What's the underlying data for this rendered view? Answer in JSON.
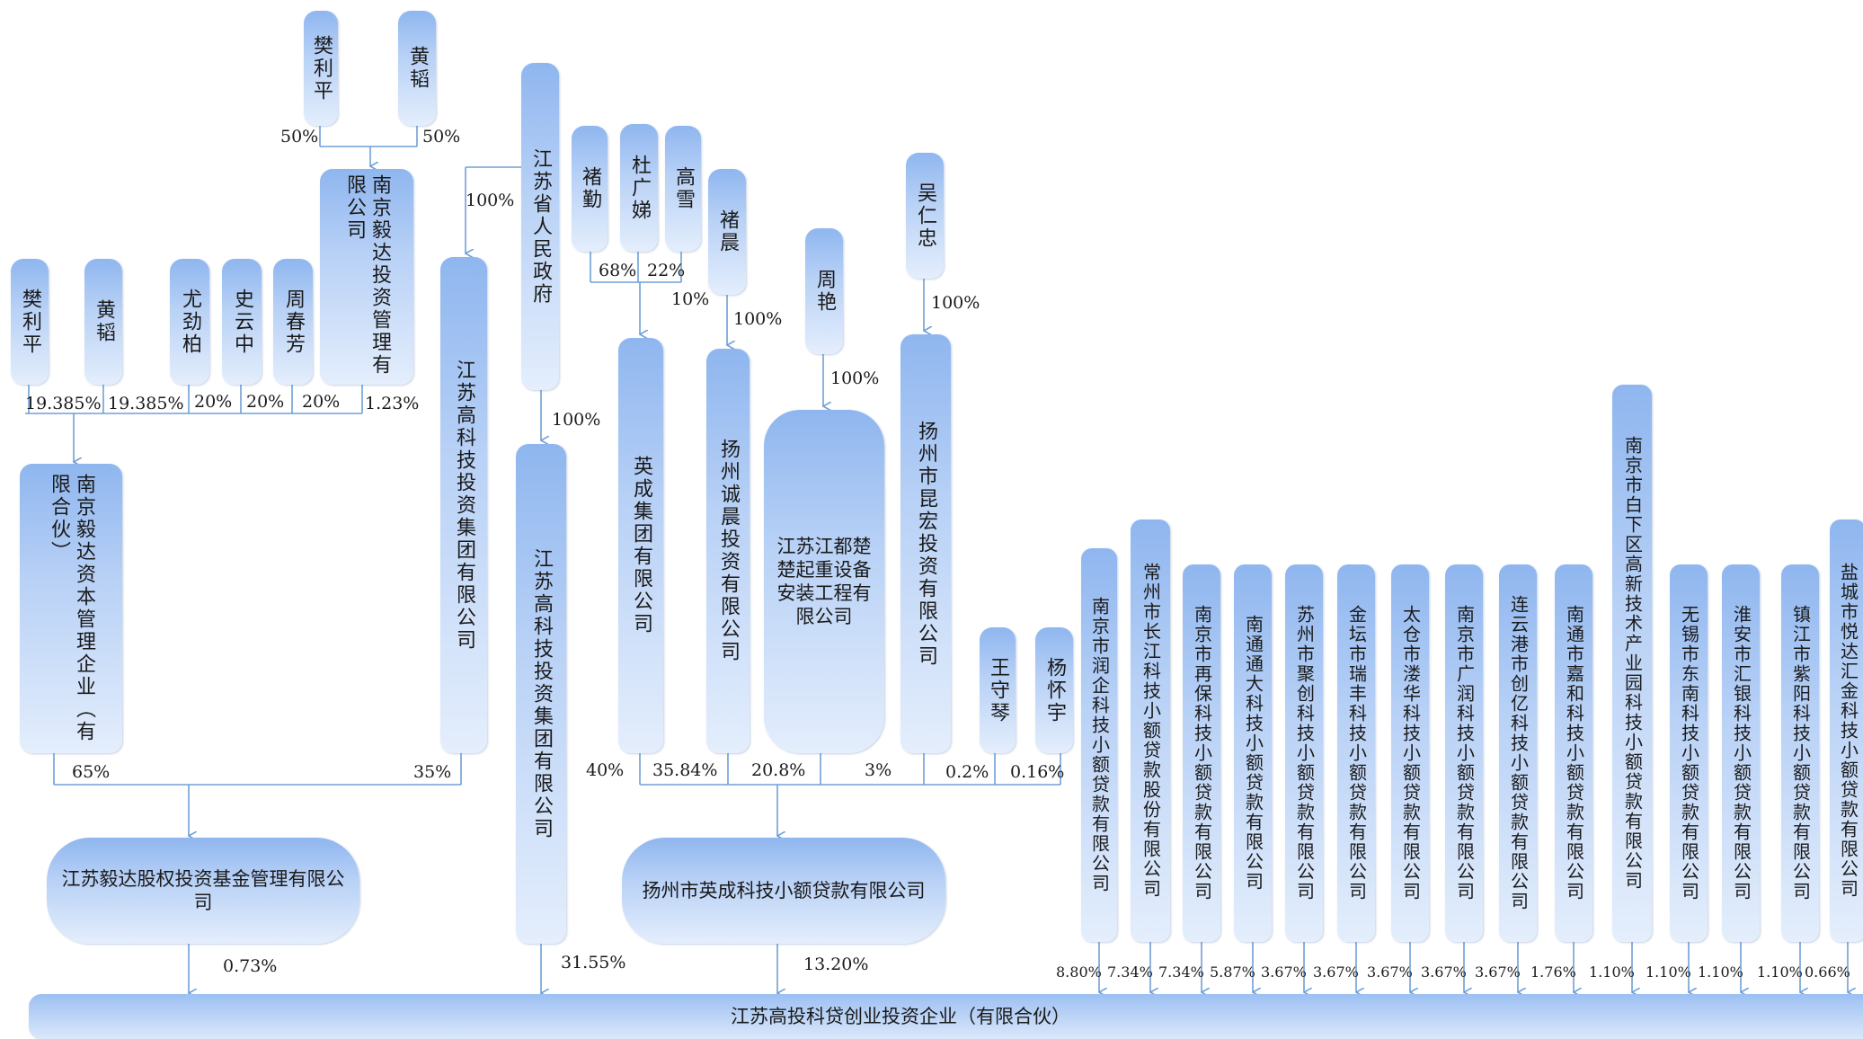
{
  "nodes": {
    "fan_liping_top": "樊利平",
    "huang_tao_top": "黄韬",
    "yida_invest_mgmt": "南京毅达投资管理有限公司",
    "jiangsu_gov": "江苏省人民政府",
    "chu_qin": "褚勤",
    "du_guangti": "杜广娣",
    "gao_xue": "高雪",
    "chu_chen": "褚晨",
    "wu_renzhong": "吴仁忠",
    "zhou_yan": "周艳",
    "fan_liping": "樊利平",
    "huang_tao": "黄韬",
    "you_jinbai": "尤劲柏",
    "shi_yunzhong": "史云中",
    "zhou_chunfang": "周春芳",
    "yida_capital_mgmt": "南京毅达资本管理企业（有限合伙）",
    "jiangsu_hitech_group_1": "江苏高科技投资集团有限公司",
    "jiangsu_hitech_group_2": "江苏高科技投资集团有限公司",
    "yingcheng_group": "英成集团有限公司",
    "yangzhou_chengchen": "扬州诚晨投资有限公司",
    "chuqi_equipment": "江苏江都楚楚起重设备安装工程有限公司",
    "yangzhou_kunhong": "扬州市昆宏投资有限公司",
    "wang_shouqin": "王守琴",
    "yang_huaiyu": "杨怀宇",
    "yida_equity_fund": "江苏毅达股权投资基金管理有限公司",
    "yangzhou_yingcheng_loan": "扬州市英成科技小额贷款有限公司",
    "lender_01": "南京市润企科技小额贷款有限公司",
    "lender_02": "常州市长江科技小额贷款股份有限公司",
    "lender_03": "南京市再保科技小额贷款有限公司",
    "lender_04": "南通通大科技小额贷款有限公司",
    "lender_05": "苏州市聚创科技小额贷款有限公司",
    "lender_06": "金坛市瑞丰科技小额贷款有限公司",
    "lender_07": "太仓市溇华科技小额贷款有限公司",
    "lender_08": "南京市广润科技小额贷款有限公司",
    "lender_09": "连云港市创亿科技小额贷款有限公司",
    "lender_10": "南通市嘉和科技小额贷款有限公司",
    "lender_11": "南京市白下区高新技术产业园科技小额贷款有限公司",
    "lender_12": "无锡市东南科技小额贷款有限公司",
    "lender_13": "淮安市汇银科技小额贷款有限公司",
    "lender_14": "镇江市紫阳科技小额贷款有限公司",
    "lender_15": "盐城市悦达汇金科技小额贷款有限公司",
    "target": "江苏高投科贷创业投资企业（有限合伙）"
  },
  "percentages": {
    "fan_top_to_yida_invest": "50%",
    "huang_top_to_yida_invest": "50%",
    "gov_to_hitech_1": "100%",
    "gov_to_hitech_2": "100%",
    "duguangti_to_yingcheng": "68%",
    "gaoxue_to_yingcheng": "22%",
    "chuqin_to_yingcheng": "10%",
    "chuchen_to_chengchen": "100%",
    "zhouyan_to_chuqi": "100%",
    "wurenzhong_to_kunhong": "100%",
    "fan_to_capital": "19.385%",
    "huang_to_capital": "19.385%",
    "you_to_capital": "20%",
    "shi_to_capital": "20%",
    "zhou_to_capital": "20%",
    "yidainvest_to_capital": "1.23%",
    "capital_to_equity_fund": "65%",
    "hitech1_to_equity_fund": "35%",
    "yingcheng_to_loan": "40%",
    "chengchen_to_loan": "35.84%",
    "chuqi_to_loan": "20.8%",
    "kunhong_to_loan": "3%",
    "wang_to_loan": "0.2%",
    "yang_to_loan": "0.16%",
    "equity_fund_to_target": "0.73%",
    "hitech2_to_target": "31.55%",
    "yzloan_to_target": "13.20%",
    "lender_01": "8.80%",
    "lender_02": "7.34%",
    "lender_03": "7.34%",
    "lender_04": "5.87%",
    "lender_05": "3.67%",
    "lender_06": "3.67%",
    "lender_07": "3.67%",
    "lender_08": "3.67%",
    "lender_09": "3.67%",
    "lender_10": "1.76%",
    "lender_11": "1.10%",
    "lender_12": "1.10%",
    "lender_13": "1.10%",
    "lender_14": "1.10%",
    "lender_15": "0.66%"
  },
  "colors": {
    "box_top": "#8fb6ef",
    "box_bottom": "#e4eefc",
    "line": "#6f9fd6"
  }
}
